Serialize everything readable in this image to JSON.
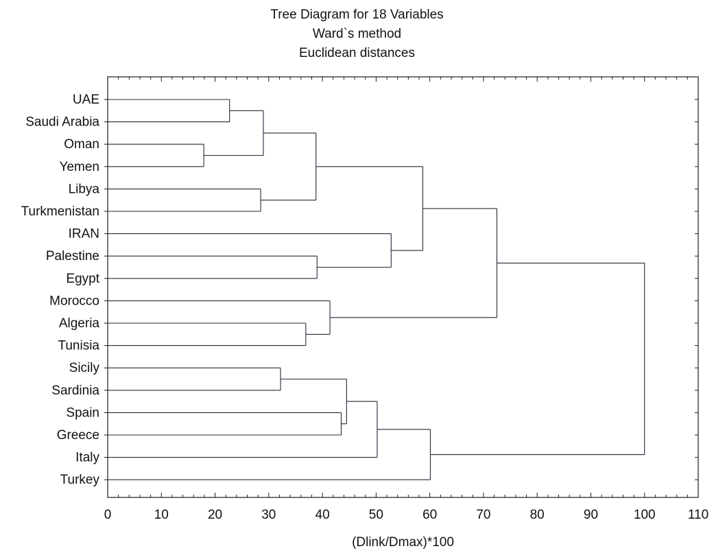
{
  "chart_data": {
    "type": "dendrogram",
    "title": [
      "Tree Diagram for 18  Variables",
      "Ward`s method",
      "Euclidean distances"
    ],
    "xlabel": "(Dlink/Dmax)*100",
    "xlim": [
      0,
      110
    ],
    "xticks": [
      "0",
      "10",
      "20",
      "30",
      "40",
      "50",
      "60",
      "70",
      "80",
      "90",
      "100",
      "110"
    ],
    "leaves": [
      "UAE",
      "Saudi Arabia",
      "Oman",
      "Yemen",
      "Libya",
      "Turkmenistan",
      "IRAN",
      "Palestine",
      "Egypt",
      "Morocco",
      "Algeria",
      "Tunisia",
      "Sicily",
      "Sardinia",
      "Spain",
      "Greece",
      "Italy",
      "Turkey"
    ],
    "merges": [
      {
        "a": "UAE",
        "b": "Saudi Arabia",
        "height": 22.7,
        "id": "m1"
      },
      {
        "a": "Oman",
        "b": "Yemen",
        "height": 17.9,
        "id": "m2"
      },
      {
        "a": "m1",
        "b": "m2",
        "height": 29.0,
        "id": "m3"
      },
      {
        "a": "Libya",
        "b": "Turkmenistan",
        "height": 28.5,
        "id": "m4"
      },
      {
        "a": "m3",
        "b": "m4",
        "height": 38.8,
        "id": "m5"
      },
      {
        "a": "Palestine",
        "b": "Egypt",
        "height": 39.0,
        "id": "m6"
      },
      {
        "a": "IRAN",
        "b": "m6",
        "height": 52.8,
        "id": "m7"
      },
      {
        "a": "m5",
        "b": "m7",
        "height": 58.7,
        "id": "m8"
      },
      {
        "a": "Algeria",
        "b": "Tunisia",
        "height": 36.9,
        "id": "m9"
      },
      {
        "a": "Morocco",
        "b": "m9",
        "height": 41.4,
        "id": "m10"
      },
      {
        "a": "m8",
        "b": "m10",
        "height": 72.5,
        "id": "m11"
      },
      {
        "a": "Sicily",
        "b": "Sardinia",
        "height": 32.2,
        "id": "m12"
      },
      {
        "a": "Spain",
        "b": "Greece",
        "height": 43.5,
        "id": "m13"
      },
      {
        "a": "m12",
        "b": "m13",
        "height": 44.5,
        "id": "m14"
      },
      {
        "a": "m14",
        "b": "Italy",
        "height": 50.2,
        "id": "m15"
      },
      {
        "a": "m15",
        "b": "Turkey",
        "height": 60.1,
        "id": "m16"
      },
      {
        "a": "m11",
        "b": "m16",
        "height": 100,
        "id": "m17"
      }
    ],
    "grid": false,
    "colors": {
      "line": "#2a2438",
      "axis": "#1a1a1a",
      "text": "#111111"
    }
  }
}
